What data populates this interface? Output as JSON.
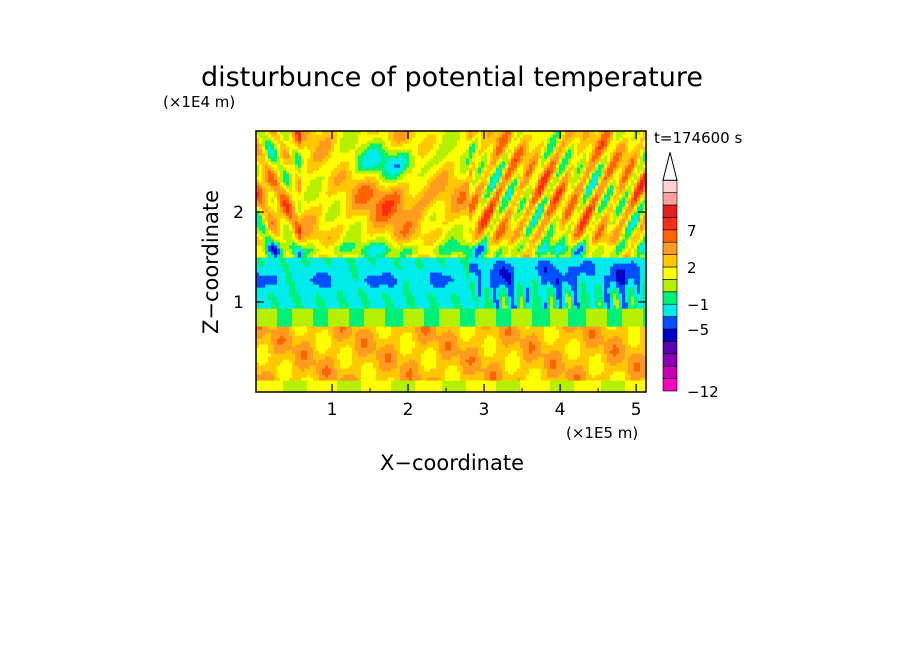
{
  "chart_data": {
    "type": "heatmap",
    "title": "disturbunce of potential temperature",
    "xlabel": "X−coordinate",
    "ylabel": "Z−coordinate",
    "x_unit": "(×1E5 m)",
    "y_unit": "(×1E4 m)",
    "time_label": "t=174600 s",
    "xlim": [
      0,
      5.13
    ],
    "ylim": [
      0,
      2.9
    ],
    "x_ticks": [
      1,
      2,
      3,
      4,
      5
    ],
    "y_ticks": [
      1,
      2
    ],
    "x_tick_labels": [
      "1",
      "2",
      "3",
      "4",
      "5"
    ],
    "y_tick_labels": [
      "1",
      "2"
    ],
    "colorbar": {
      "levels": [
        {
          "color": "#ff00bf"
        },
        {
          "color": "#c800b4"
        },
        {
          "color": "#8c00b4"
        },
        {
          "color": "#5a00b4"
        },
        {
          "color": "#0000c8"
        },
        {
          "color": "#0050ff"
        },
        {
          "color": "#00ebeb"
        },
        {
          "color": "#00f078"
        },
        {
          "color": "#b4f000"
        },
        {
          "color": "#ffff00"
        },
        {
          "color": "#ffc800"
        },
        {
          "color": "#ff9b1e"
        },
        {
          "color": "#ff6400"
        },
        {
          "color": "#ff2d14"
        },
        {
          "color": "#e61e1e"
        },
        {
          "color": "#ffa0a0"
        },
        {
          "color": "#ffd2d2"
        }
      ],
      "tick_labels": [
        {
          "label": "−12",
          "at": 0
        },
        {
          "label": "−5",
          "at": 5
        },
        {
          "label": "−1",
          "at": 7
        },
        {
          "label": "2",
          "at": 10
        },
        {
          "label": "7",
          "at": 13
        }
      ]
    },
    "field": {
      "note_values": "approximate class index per region, 0 = -12 (magenta), 16 = highest (pink)",
      "layers": [
        {
          "z_range": [
            0,
            0.12
          ],
          "dominant": "yellow-green"
        },
        {
          "z_range": [
            0.12,
            0.75
          ],
          "dominant": "orange/yellow"
        },
        {
          "z_range": [
            0.75,
            0.95
          ],
          "dominant": "green"
        },
        {
          "z_range": [
            0.95,
            1.5
          ],
          "dominant": "cyan with blue patches"
        },
        {
          "z_range": [
            1.5,
            2.9
          ],
          "dominant": "yellow/orange with blue and red streaks"
        }
      ]
    }
  }
}
